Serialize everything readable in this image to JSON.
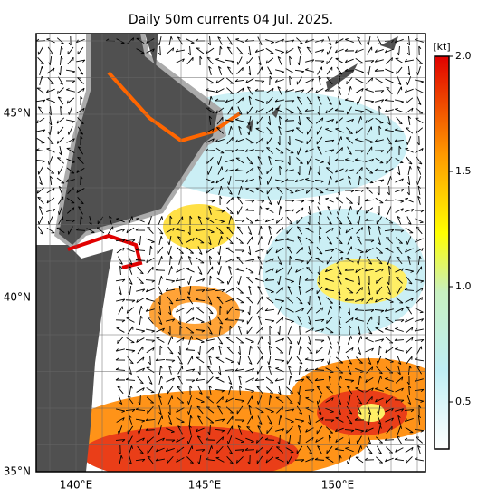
{
  "map": {
    "title": "Daily 50m currents 04 Jul. 2025.",
    "lat_labels": [
      "45°N",
      "40°N",
      "35°N"
    ],
    "lon_labels": [
      "140°E",
      "145°E",
      "150°E"
    ]
  },
  "colorbar": {
    "unit": "[kt]",
    "ticks": [
      {
        "value": 2,
        "label": "2.0"
      },
      1.5,
      {
        "value": 1,
        "label": "1.0"
      },
      0.5
    ]
  }
}
